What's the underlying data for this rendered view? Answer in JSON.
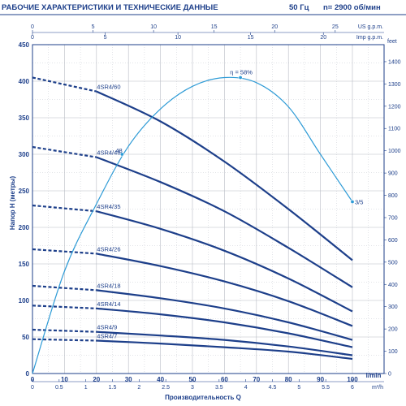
{
  "header": {
    "title": "РАБОЧИЕ ХАРАКТЕРИСТИКИ И ТЕХНИЧЕСКИЕ ДАННЫЕ",
    "frequency": "50 Гц",
    "speed": "n= 2900 об/мин"
  },
  "chart_data": {
    "type": "line",
    "xlabel": "Производительность Q",
    "ylabel": "Напор H (метры)",
    "x_unit": "l/min",
    "xlim": [
      0,
      110
    ],
    "ylim": [
      0,
      450
    ],
    "x_ticks": [
      0,
      10,
      20,
      30,
      40,
      50,
      60,
      70,
      80,
      90,
      100
    ],
    "y_ticks": [
      0,
      50,
      100,
      150,
      200,
      250,
      300,
      350,
      400,
      450
    ],
    "top_axes": [
      {
        "unit": "US g.p.m.",
        "ticks": [
          "0",
          "5",
          "10",
          "15",
          "20",
          "25"
        ]
      },
      {
        "unit": "Imp g.p.m.",
        "ticks": [
          "0",
          "5",
          "10",
          "15",
          "20"
        ]
      }
    ],
    "bottom_axis2": {
      "unit": "m³/h",
      "ticks": [
        "0",
        "0.5",
        "1",
        "1.5",
        "2",
        "2.5",
        "3",
        "3.5",
        "4",
        "4.5",
        "5",
        "5.5",
        "6"
      ]
    },
    "right_axis": {
      "unit": "feet",
      "ticks": [
        "0",
        "100",
        "200",
        "300",
        "400",
        "500",
        "600",
        "700",
        "800",
        "900",
        "1000",
        "1100",
        "1200",
        "1300",
        "1400"
      ]
    },
    "series": [
      {
        "name": "4SR4/60",
        "shutoff": 405,
        "start": [
          20,
          386
        ],
        "points": [
          [
            20,
            386
          ],
          [
            40,
            345
          ],
          [
            60,
            290
          ],
          [
            80,
            225
          ],
          [
            100,
            155
          ]
        ]
      },
      {
        "name": "4SR4/46",
        "shutoff": 310,
        "start": [
          20,
          296
        ],
        "points": [
          [
            20,
            296
          ],
          [
            40,
            262
          ],
          [
            60,
            222
          ],
          [
            80,
            172
          ],
          [
            100,
            118
          ]
        ]
      },
      {
        "name": "4SR4/35",
        "shutoff": 230,
        "start": [
          20,
          222
        ],
        "points": [
          [
            20,
            222
          ],
          [
            40,
            198
          ],
          [
            60,
            168
          ],
          [
            80,
            130
          ],
          [
            100,
            85
          ]
        ]
      },
      {
        "name": "4SR4/26",
        "shutoff": 170,
        "start": [
          20,
          164
        ],
        "points": [
          [
            20,
            164
          ],
          [
            40,
            147
          ],
          [
            60,
            126
          ],
          [
            80,
            99
          ],
          [
            100,
            65
          ]
        ]
      },
      {
        "name": "4SR4/18",
        "shutoff": 120,
        "start": [
          20,
          114
        ],
        "points": [
          [
            20,
            114
          ],
          [
            40,
            103
          ],
          [
            60,
            89
          ],
          [
            80,
            70
          ],
          [
            100,
            46
          ]
        ]
      },
      {
        "name": "4SR4/14",
        "shutoff": 93,
        "start": [
          20,
          89
        ],
        "points": [
          [
            20,
            89
          ],
          [
            40,
            81
          ],
          [
            60,
            70
          ],
          [
            80,
            55
          ],
          [
            100,
            36
          ]
        ]
      },
      {
        "name": "4SR4/9",
        "shutoff": 60,
        "start": [
          20,
          57
        ],
        "points": [
          [
            20,
            57
          ],
          [
            40,
            52
          ],
          [
            60,
            46
          ],
          [
            80,
            37
          ],
          [
            100,
            25
          ]
        ]
      },
      {
        "name": "4SR4/7",
        "shutoff": 47,
        "start": [
          20,
          45
        ],
        "points": [
          [
            20,
            45
          ],
          [
            40,
            41
          ],
          [
            60,
            36
          ],
          [
            80,
            30
          ],
          [
            100,
            20
          ]
        ]
      }
    ],
    "efficiency_curve": {
      "label": "η = 58%",
      "start_label": "48",
      "end_label": "3/5",
      "points": [
        [
          0,
          0
        ],
        [
          10,
          140
        ],
        [
          20,
          232
        ],
        [
          30,
          311
        ],
        [
          40,
          362
        ],
        [
          50,
          393
        ],
        [
          60,
          405
        ],
        [
          70,
          398
        ],
        [
          80,
          365
        ],
        [
          90,
          300
        ],
        [
          100,
          235
        ]
      ],
      "markers": [
        [
          28,
          300
        ],
        [
          65,
          405
        ],
        [
          100,
          235
        ]
      ]
    },
    "grid": true,
    "legend": "none"
  },
  "colors": {
    "curve": "#1d3f8a",
    "efficiency": "#2e9bd6",
    "grid": "#b8bcc4",
    "text": "#1d3f8a"
  }
}
